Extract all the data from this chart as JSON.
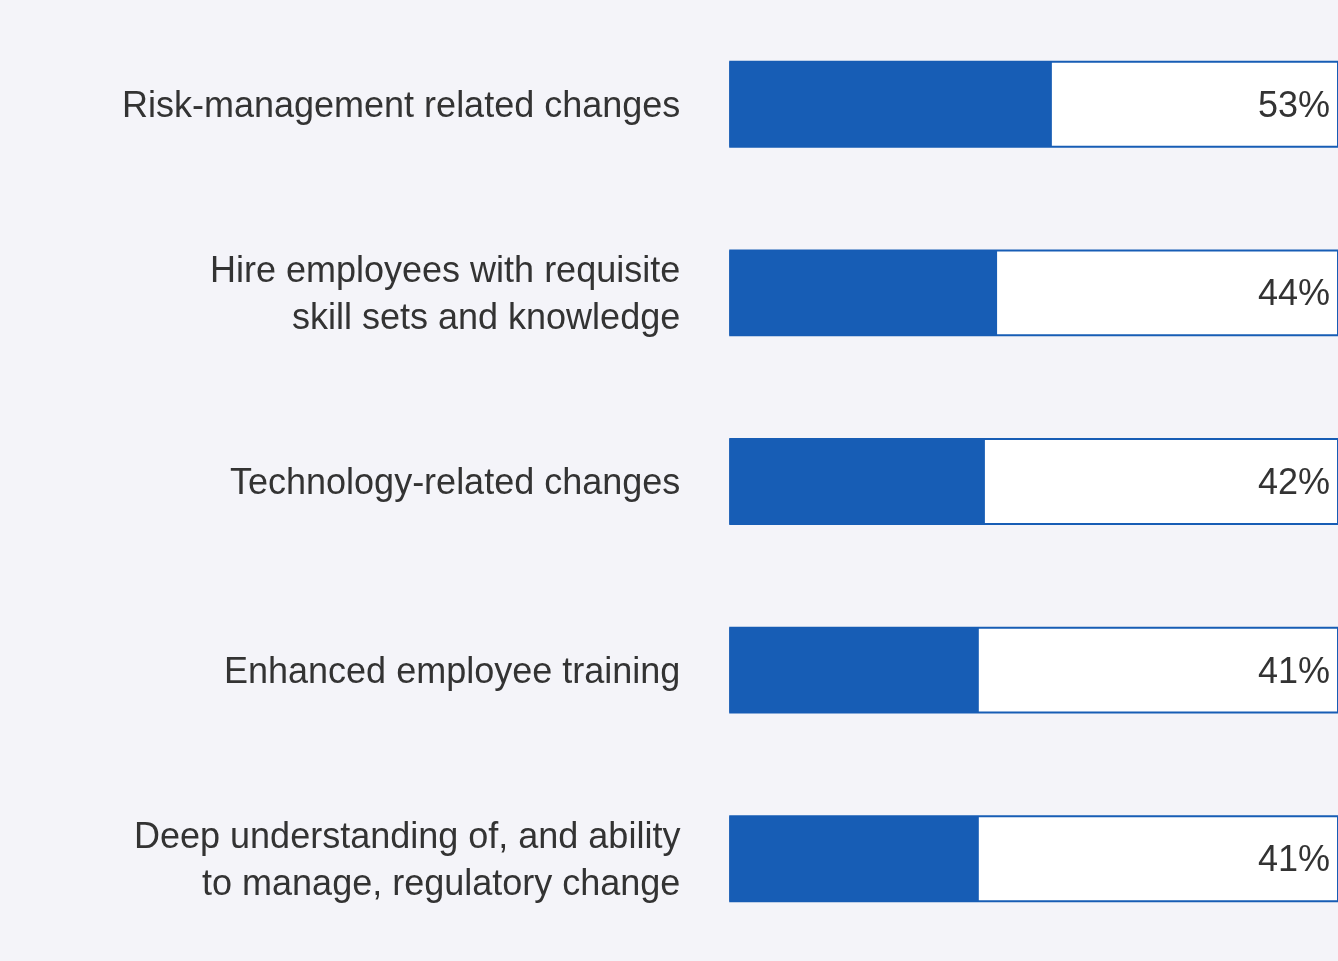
{
  "chart_data": {
    "type": "bar",
    "orientation": "horizontal",
    "categories": [
      "Risk-management related changes",
      "Hire employees with requisite skill sets and knowledge",
      "Technology-related changes",
      "Enhanced employee training",
      "Deep understanding of, and ability to manage, regulatory change"
    ],
    "values": [
      53,
      44,
      42,
      41,
      41
    ],
    "value_labels": [
      "53%",
      "44%",
      "42%",
      "41%",
      "41%"
    ],
    "color": "#175db5",
    "xlim": [
      0,
      100
    ],
    "tick_labels": "y"
  }
}
